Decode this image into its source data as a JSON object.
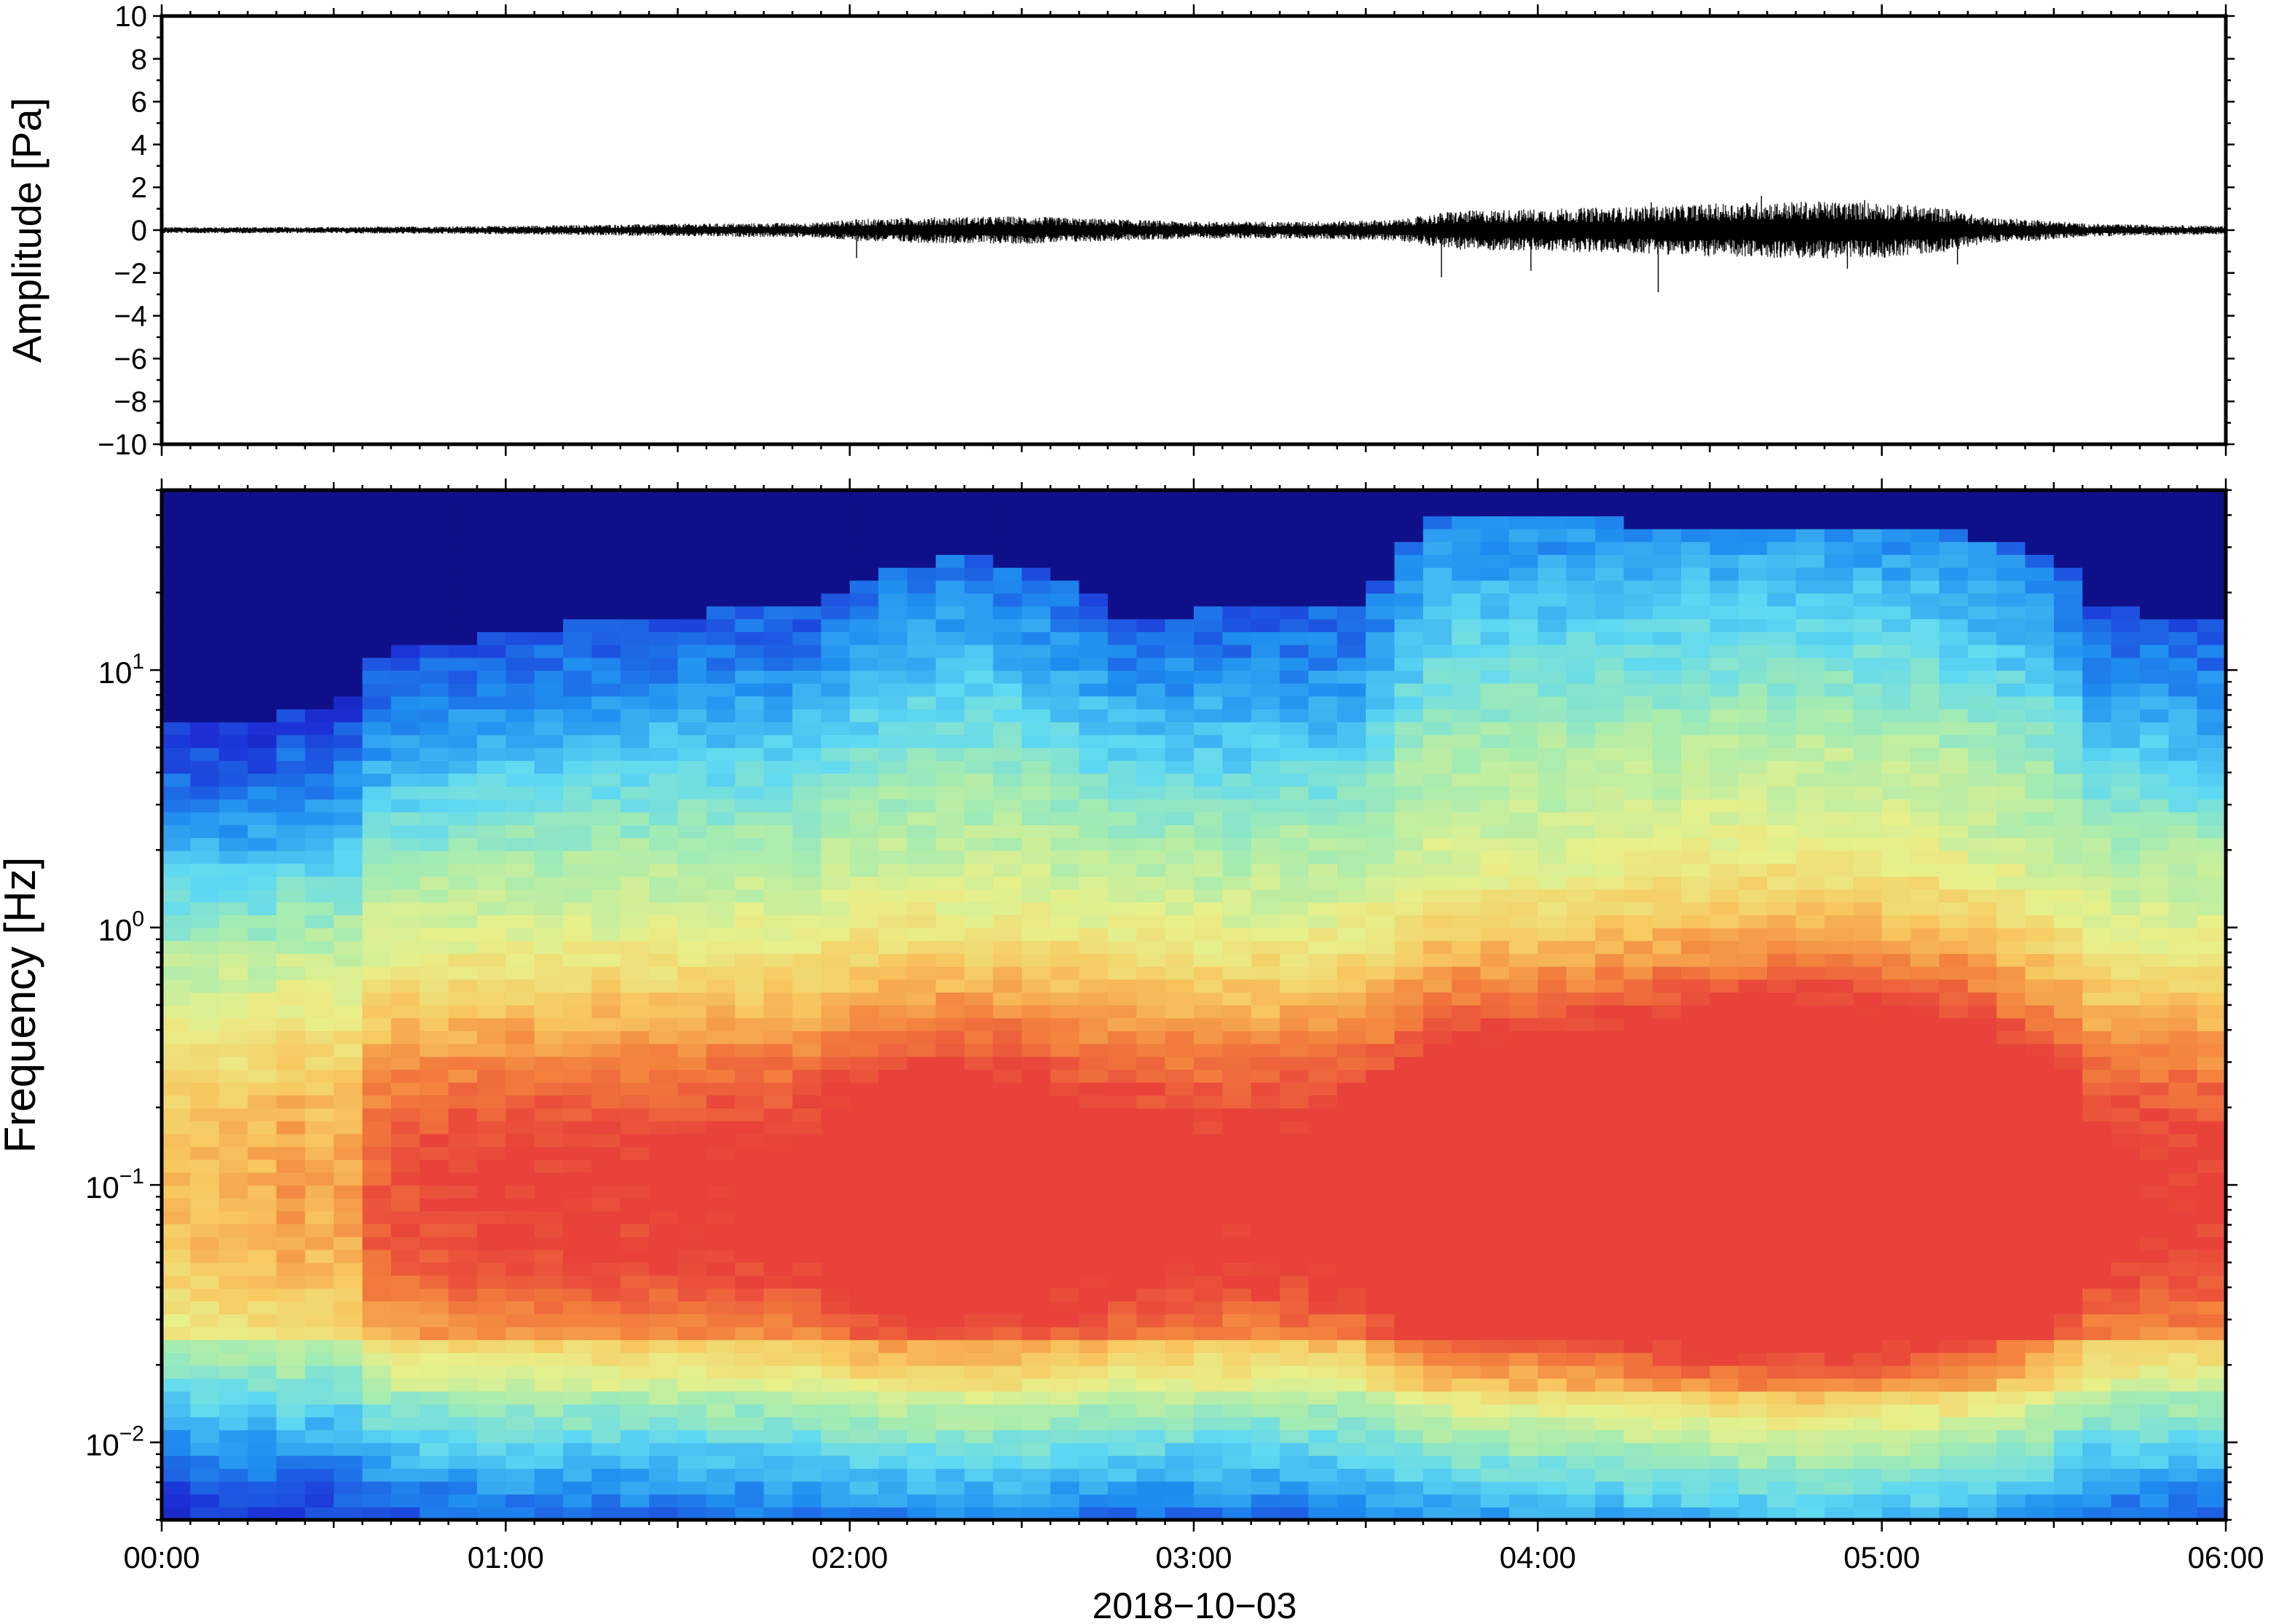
{
  "chart_data": [
    {
      "type": "line",
      "ylabel": "Amplitude [Pa]",
      "ylim": [
        -10,
        10
      ],
      "y_ticks": [
        {
          "value": 10,
          "label": "10"
        },
        {
          "value": 8,
          "label": "8"
        },
        {
          "value": 6,
          "label": "6"
        },
        {
          "value": 4,
          "label": "4"
        },
        {
          "value": 2,
          "label": "2"
        },
        {
          "value": 0,
          "label": "0"
        },
        {
          "value": -2,
          "label": "−2"
        },
        {
          "value": -4,
          "label": "−4"
        },
        {
          "value": -6,
          "label": "−6"
        },
        {
          "value": -8,
          "label": "−8"
        },
        {
          "value": -10,
          "label": "−10"
        }
      ],
      "xlim_hours": [
        0,
        6
      ],
      "series": [
        {
          "color": "#000000",
          "envelope_hours": [
            0,
            0.5,
            1.0,
            1.5,
            1.9,
            2.0,
            2.2,
            2.5,
            2.8,
            3.0,
            3.3,
            3.6,
            3.75,
            4.0,
            4.3,
            4.6,
            4.8,
            5.0,
            5.2,
            5.3,
            5.45,
            5.6,
            6.0
          ],
          "envelope_amplitude_pa": [
            0.15,
            0.15,
            0.2,
            0.3,
            0.35,
            0.5,
            0.6,
            0.65,
            0.5,
            0.4,
            0.4,
            0.5,
            0.9,
            1.0,
            1.1,
            1.3,
            1.35,
            1.3,
            1.0,
            0.6,
            0.5,
            0.3,
            0.2
          ],
          "spikes": [
            {
              "x_hours": 2.02,
              "y_pa": -1.3
            },
            {
              "x_hours": 3.72,
              "y_pa": -2.2
            },
            {
              "x_hours": 3.98,
              "y_pa": -1.9
            },
            {
              "x_hours": 4.35,
              "y_pa": -2.9
            },
            {
              "x_hours": 4.33,
              "y_pa": 1.3
            },
            {
              "x_hours": 4.65,
              "y_pa": 1.6
            },
            {
              "x_hours": 4.9,
              "y_pa": -1.8
            },
            {
              "x_hours": 4.95,
              "y_pa": 1.4
            },
            {
              "x_hours": 5.22,
              "y_pa": -1.6
            }
          ]
        }
      ]
    },
    {
      "type": "heatmap",
      "ylabel": "Frequency [Hz]",
      "xlabel": "2018−10−03",
      "y_scale": "log",
      "ylim": [
        0.005,
        50
      ],
      "xlim_hours": [
        0,
        6
      ],
      "y_ticks": [
        {
          "value": 0.01,
          "base": "10",
          "exp": "−2"
        },
        {
          "value": 0.1,
          "base": "10",
          "exp": "−1"
        },
        {
          "value": 1,
          "base": "10",
          "exp": "0"
        },
        {
          "value": 10,
          "base": "10",
          "exp": "1"
        }
      ],
      "x_ticks": [
        {
          "value": 0,
          "label": "00:00"
        },
        {
          "value": 1,
          "label": "01:00"
        },
        {
          "value": 2,
          "label": "02:00"
        },
        {
          "value": 3,
          "label": "03:00"
        },
        {
          "value": 4,
          "label": "04:00"
        },
        {
          "value": 5,
          "label": "05:00"
        },
        {
          "value": 6,
          "label": "06:00"
        }
      ],
      "colormap": [
        "#0d0a7a",
        "#1c2fd6",
        "#1f8ef0",
        "#5fd9f2",
        "#a6ecb0",
        "#e8f08a",
        "#f8c860",
        "#f3833d",
        "#e8423a"
      ],
      "activity_hours": [
        0,
        0.35,
        0.4,
        0.5,
        0.62,
        0.7,
        1.0,
        1.4,
        1.9,
        2.0,
        2.3,
        2.5,
        2.8,
        3.1,
        3.5,
        3.7,
        3.8,
        4.0,
        4.3,
        4.6,
        4.9,
        5.2,
        5.4,
        5.5,
        5.6,
        6.0
      ],
      "activity_level": [
        0.05,
        0.1,
        0.2,
        0.05,
        0.3,
        0.35,
        0.4,
        0.42,
        0.45,
        0.55,
        0.6,
        0.58,
        0.48,
        0.45,
        0.5,
        0.75,
        0.78,
        0.8,
        0.9,
        1.0,
        1.0,
        0.9,
        0.7,
        0.65,
        0.45,
        0.4
      ],
      "upper_cutoff_hz": [
        6,
        6,
        8,
        6,
        11,
        12,
        14,
        16,
        18,
        22,
        28,
        26,
        16,
        17,
        18,
        40,
        40,
        42,
        37,
        37,
        36,
        34,
        30,
        28,
        18,
        15
      ]
    }
  ]
}
